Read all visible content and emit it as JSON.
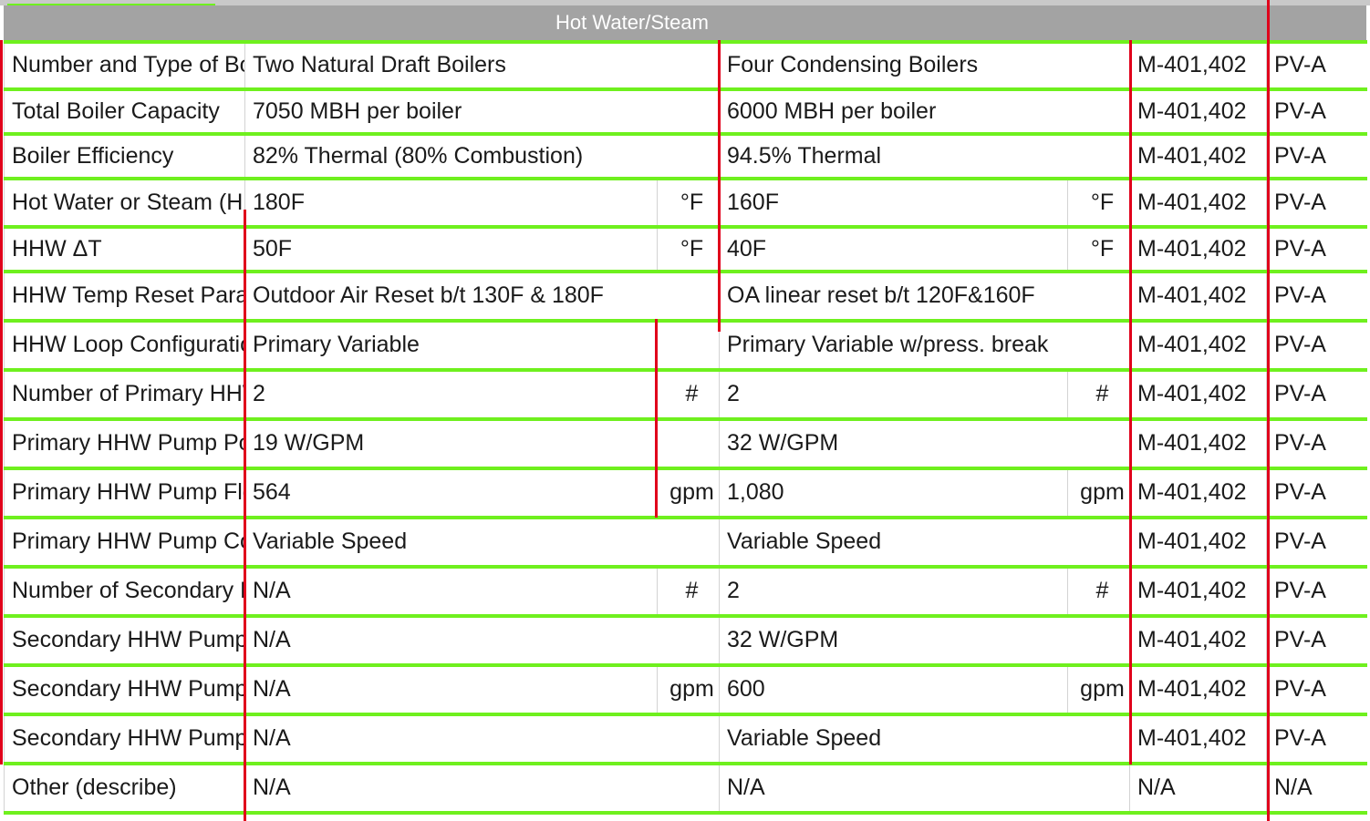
{
  "header": {
    "title": "Hot Water/Steam"
  },
  "rows": [
    {
      "param": "Number and Type of Boilers",
      "base": "Two Natural Draft Boilers",
      "base_unit": "",
      "proposed": "Four Condensing Boilers",
      "proposed_unit": "",
      "ref": "M-401,402",
      "code": "PV-A"
    },
    {
      "param": "Total Boiler Capacity",
      "base": "7050 MBH per boiler",
      "base_unit": "",
      "proposed": "6000 MBH per boiler",
      "proposed_unit": "",
      "ref": "M-401,402",
      "code": "PV-A"
    },
    {
      "param": "Boiler Efficiency",
      "base": "82% Thermal (80% Combustion)",
      "base_unit": "",
      "proposed": "94.5% Thermal",
      "proposed_unit": "",
      "ref": "M-401,402",
      "code": "PV-A"
    },
    {
      "param": "Hot Water or Steam (HHW) Supply Temp",
      "base": "180F",
      "base_unit": "°F",
      "proposed": "160F",
      "proposed_unit": "°F",
      "ref": "M-401,402",
      "code": "PV-A"
    },
    {
      "param": "HHW ΔT",
      "base": "50F",
      "base_unit": "°F",
      "proposed": "40F",
      "proposed_unit": "°F",
      "ref": "M-401,402",
      "code": "PV-A"
    },
    {
      "param": "HHW Temp Reset Parameters",
      "base": "Outdoor Air Reset b/t 130F & 180F",
      "base_unit": "",
      "proposed": "OA linear reset b/t 120F&160F",
      "proposed_unit": "",
      "ref": "M-401,402",
      "code": "PV-A"
    },
    {
      "param": "HHW Loop Configuration",
      "base": "Primary Variable",
      "base_unit": "",
      "proposed": "Primary Variable w/press. break",
      "proposed_unit": "",
      "ref": "M-401,402",
      "code": "PV-A"
    },
    {
      "param": "Number of Primary HHW Pumps",
      "base": "2",
      "base_unit": "#",
      "proposed": "2",
      "proposed_unit": "#",
      "ref": "M-401,402",
      "code": "PV-A"
    },
    {
      "param": "Primary HHW Pump Power",
      "base": "19 W/GPM",
      "base_unit": "",
      "proposed": "32 W/GPM",
      "proposed_unit": "",
      "ref": "M-401,402",
      "code": "PV-A"
    },
    {
      "param": "Primary HHW Pump Flow",
      "base": "564",
      "base_unit": "gpm",
      "proposed": "1,080",
      "proposed_unit": "gpm",
      "ref": "M-401,402",
      "code": "PV-A"
    },
    {
      "param": "Primary HHW Pump Control",
      "base": "Variable Speed",
      "base_unit": "",
      "proposed": "Variable Speed",
      "proposed_unit": "",
      "ref": "M-401,402",
      "code": "PV-A"
    },
    {
      "param": "Number of Secondary HHW Pumps",
      "base": "N/A",
      "base_unit": "#",
      "proposed": "2",
      "proposed_unit": "#",
      "ref": "M-401,402",
      "code": "PV-A"
    },
    {
      "param": "Secondary HHW Pump Power",
      "base": "N/A",
      "base_unit": "",
      "proposed": "32 W/GPM",
      "proposed_unit": "",
      "ref": "M-401,402",
      "code": "PV-A"
    },
    {
      "param": "Secondary HHW Pump Flow",
      "base": "N/A",
      "base_unit": "gpm",
      "proposed": "600",
      "proposed_unit": "gpm",
      "ref": "M-401,402",
      "code": "PV-A"
    },
    {
      "param": "Secondary HHW Pump Control",
      "base": "N/A",
      "base_unit": "",
      "proposed": "Variable Speed",
      "proposed_unit": "",
      "ref": "M-401,402",
      "code": "PV-A"
    },
    {
      "param": "Other (describe)",
      "base": "N/A",
      "base_unit": "",
      "proposed": "N/A",
      "proposed_unit": "",
      "ref": "N/A",
      "code": "N/A"
    }
  ],
  "colors": {
    "row_rule": "#6ff01e",
    "markup_red": "#e0001b",
    "banner": "#a3a3a3"
  }
}
